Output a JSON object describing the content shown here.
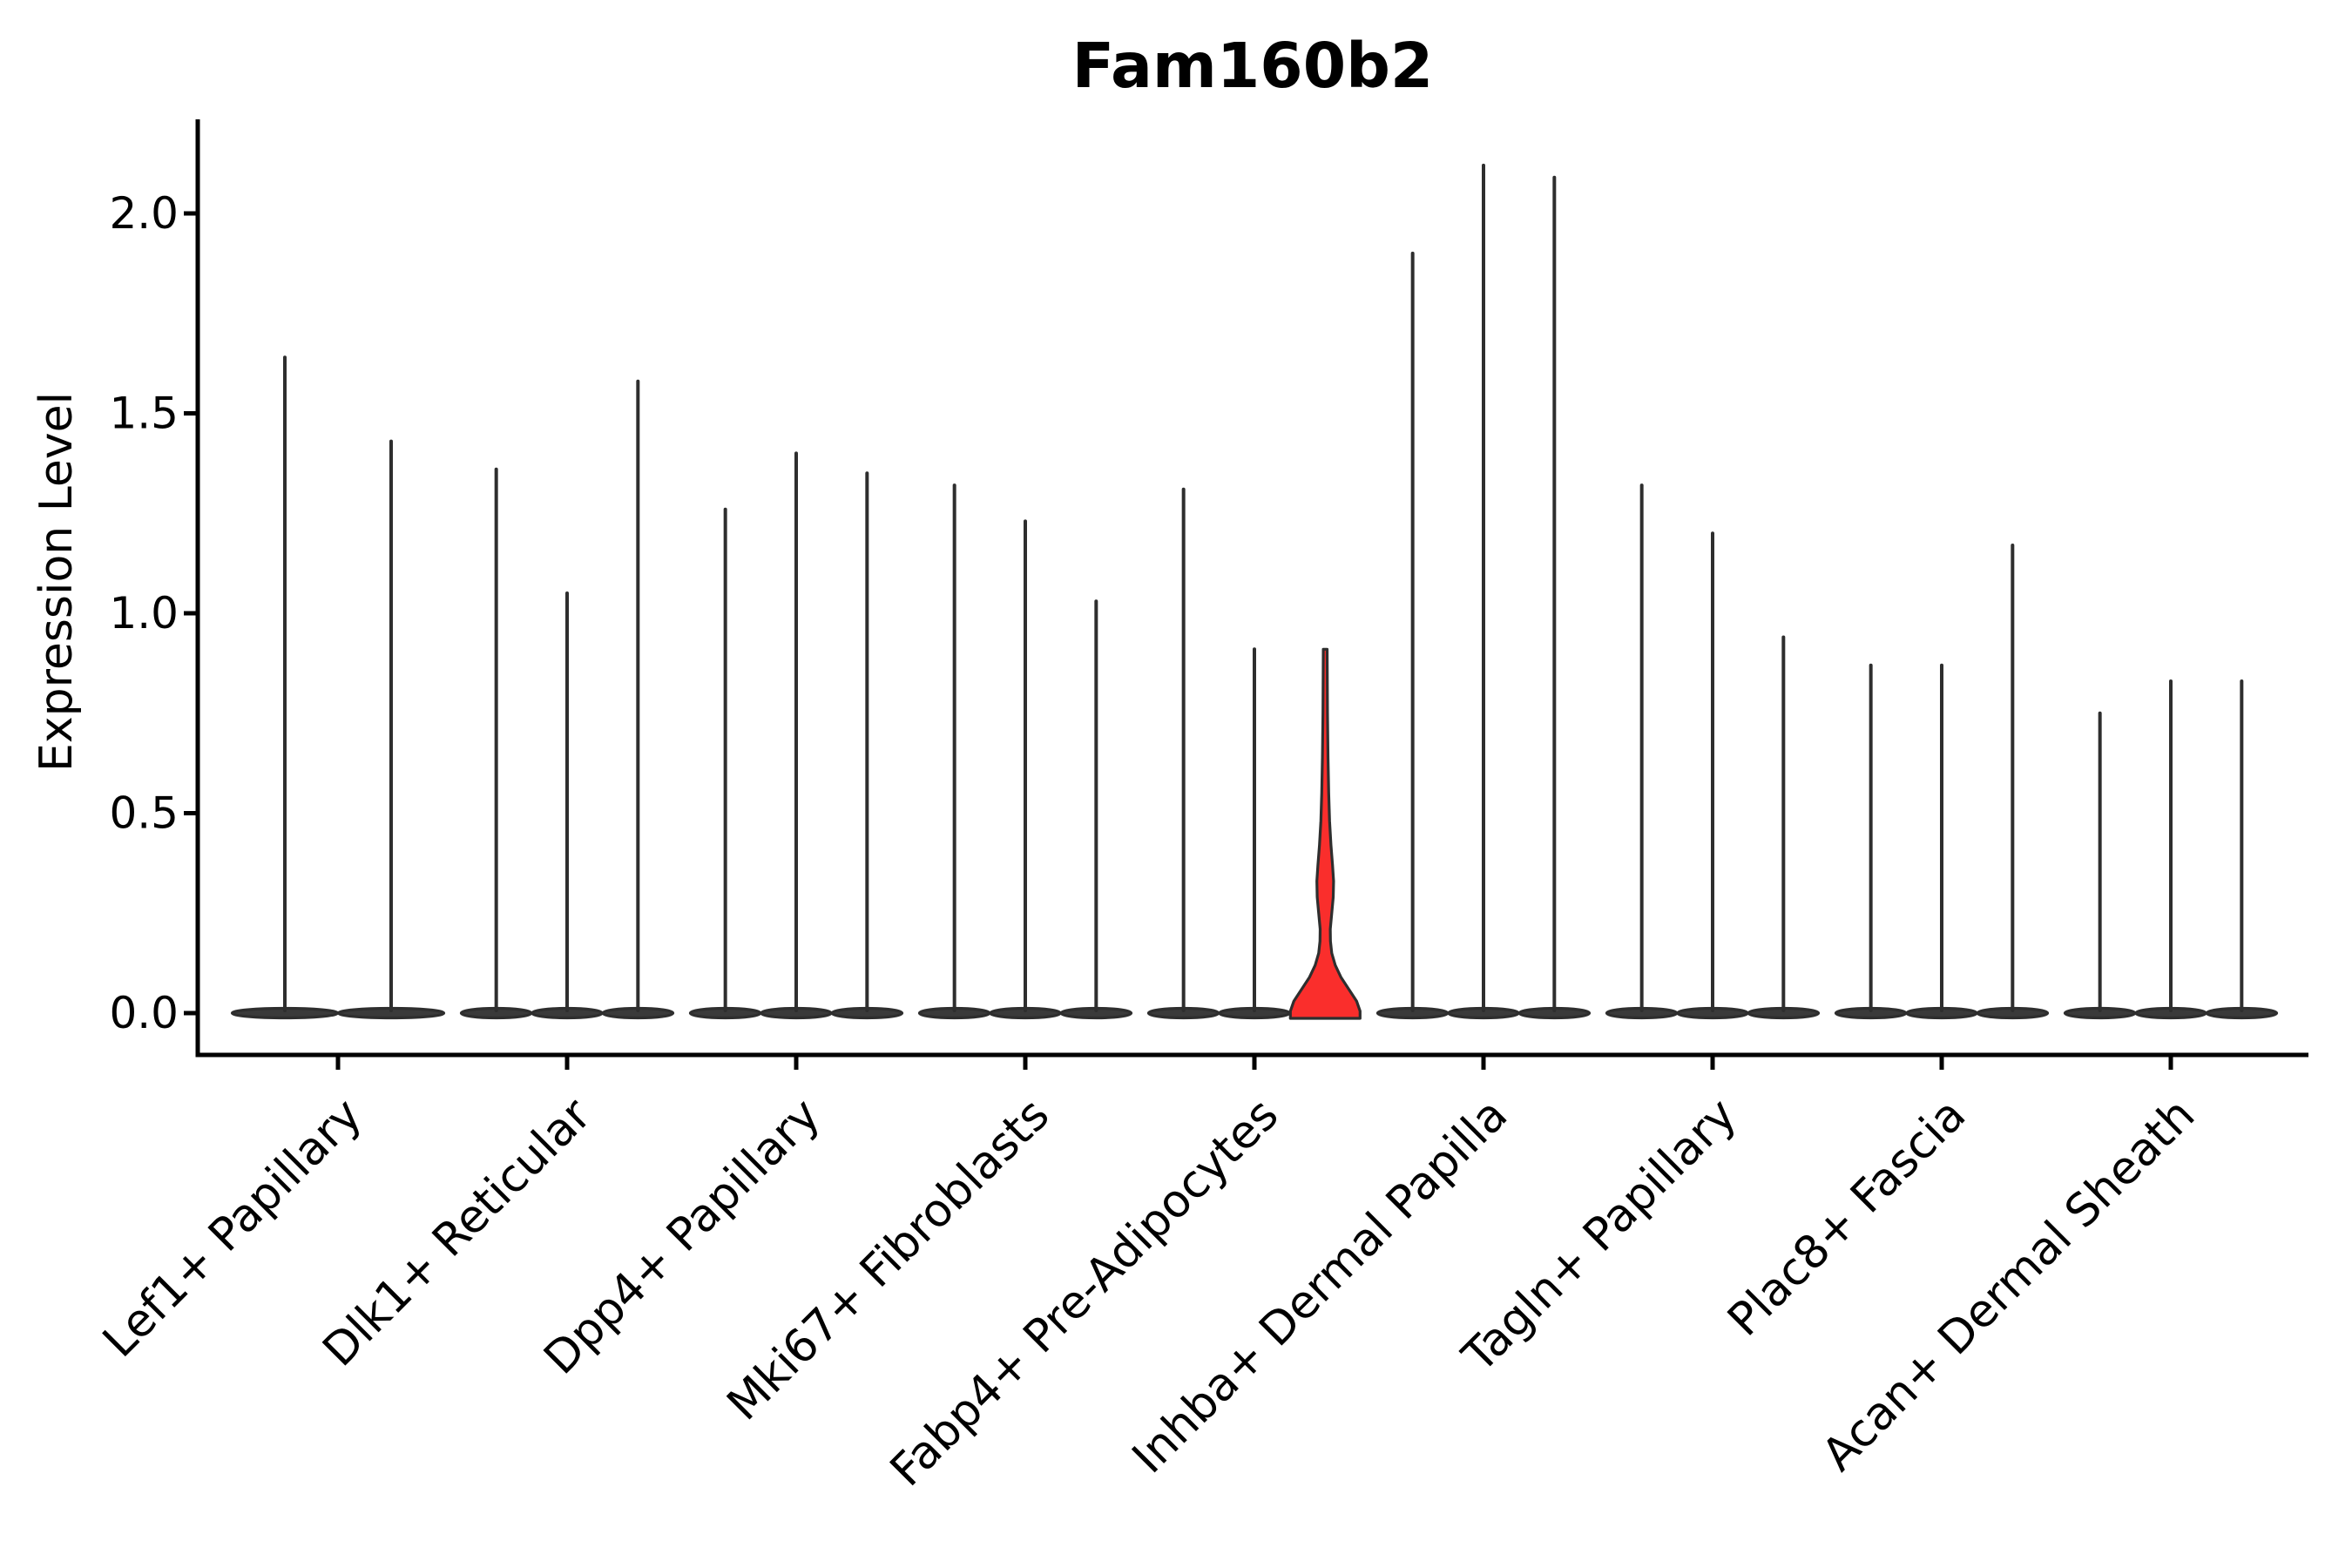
{
  "figure": {
    "background": "#ffffff"
  },
  "chart_data": {
    "type": "violin",
    "title": "Fam160b2",
    "xlabel": "",
    "ylabel": "Expression Level",
    "ylim": [
      -0.105,
      2.235
    ],
    "yticks": [
      0.0,
      0.5,
      1.0,
      1.5,
      2.0
    ],
    "ytick_labels": [
      "0.0",
      "0.5",
      "1.0",
      "1.5",
      "2.0"
    ],
    "grid": false,
    "legend": "none",
    "x_tick_label_rotation_deg": 45,
    "colors": {
      "outline": "#2e2e2e",
      "body_fill": "#3a3a3a",
      "highlight_fill": "#fa2e2c",
      "axis": "#000000",
      "text": "#000000",
      "background": "#ffffff"
    },
    "description": "Violin plot of Fam160b2 expression; each cell-type group contains per-sample violins that are flat at 0 with a thin spike to the max expressed cell; one violin (3rd of Fabp4+ Pre-Adipocytes) is highlighted red with a visible density bulge near 0.",
    "groups": [
      {
        "label": "Lef1+ Papillary",
        "violins": [
          {
            "max": 1.64,
            "highlighted": false
          },
          {
            "max": 1.43,
            "highlighted": false
          }
        ]
      },
      {
        "label": "Dlk1+ Reticular",
        "violins": [
          {
            "max": 1.36,
            "highlighted": false
          },
          {
            "max": 1.05,
            "highlighted": false
          },
          {
            "max": 1.58,
            "highlighted": false
          }
        ]
      },
      {
        "label": "Dpp4+ Papillary",
        "violins": [
          {
            "max": 1.26,
            "highlighted": false
          },
          {
            "max": 1.4,
            "highlighted": false
          },
          {
            "max": 1.35,
            "highlighted": false
          }
        ]
      },
      {
        "label": "Mki67+ Fibroblasts",
        "violins": [
          {
            "max": 1.32,
            "highlighted": false
          },
          {
            "max": 1.23,
            "highlighted": false
          },
          {
            "max": 1.03,
            "highlighted": false
          }
        ]
      },
      {
        "label": "Fabp4+ Pre-Adipocytes",
        "violins": [
          {
            "max": 1.31,
            "highlighted": false
          },
          {
            "max": 0.91,
            "highlighted": false
          },
          {
            "max": 0.91,
            "highlighted": true
          }
        ]
      },
      {
        "label": "Inhba+ Dermal Papilla",
        "violins": [
          {
            "max": 1.9,
            "highlighted": false
          },
          {
            "max": 2.12,
            "highlighted": false
          },
          {
            "max": 2.09,
            "highlighted": false
          }
        ]
      },
      {
        "label": "Tagln+ Papillary",
        "violins": [
          {
            "max": 1.32,
            "highlighted": false
          },
          {
            "max": 1.2,
            "highlighted": false
          },
          {
            "max": 0.94,
            "highlighted": false
          }
        ]
      },
      {
        "label": "Plac8+ Fascia",
        "violins": [
          {
            "max": 0.87,
            "highlighted": false
          },
          {
            "max": 0.87,
            "highlighted": false
          },
          {
            "max": 1.17,
            "highlighted": false
          }
        ]
      },
      {
        "label": "Acan+ Dermal Sheath",
        "violins": [
          {
            "max": 0.75,
            "highlighted": false
          },
          {
            "max": 0.83,
            "highlighted": false
          },
          {
            "max": 0.83,
            "highlighted": false
          }
        ]
      }
    ],
    "highlight_violin_shape": [
      [
        0.005,
        40.0
      ],
      [
        0.03,
        36.0
      ],
      [
        0.06,
        27.0
      ],
      [
        0.09,
        18.0
      ],
      [
        0.12,
        11.5
      ],
      [
        0.15,
        7.5
      ],
      [
        0.18,
        6.0
      ],
      [
        0.21,
        5.8
      ],
      [
        0.25,
        7.5
      ],
      [
        0.29,
        9.2
      ],
      [
        0.33,
        9.6
      ],
      [
        0.37,
        8.4
      ],
      [
        0.42,
        6.6
      ],
      [
        0.48,
        5.0
      ],
      [
        0.55,
        4.0
      ],
      [
        0.64,
        3.2
      ],
      [
        0.75,
        2.6
      ],
      [
        0.91,
        2.2
      ]
    ]
  }
}
